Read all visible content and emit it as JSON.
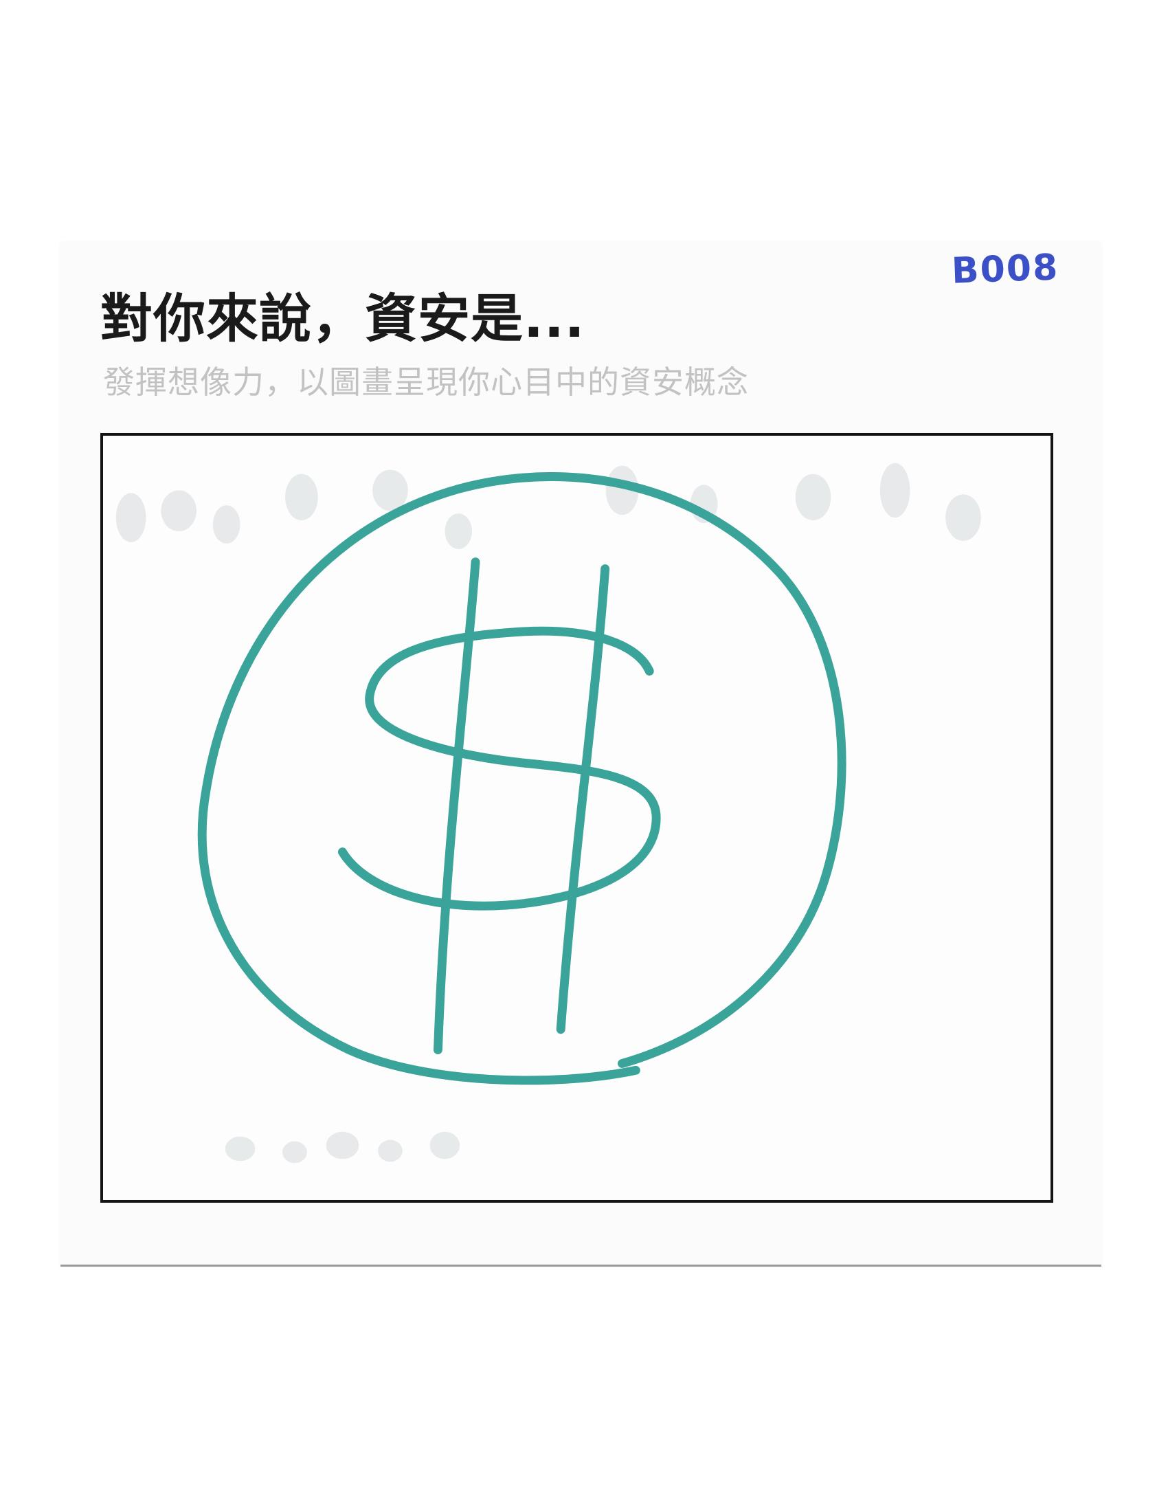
{
  "card": {
    "id": "B008",
    "title": "對你來說，資安是...",
    "subtitle": "發揮想像力，以圖畫呈現你心目中的資安概念"
  },
  "drawing": {
    "subject": "dollar-sign-in-circle",
    "ink_color": "#3aa39a"
  },
  "colors": {
    "title": "#1a1a1a",
    "subtitle": "#c2c2c2",
    "id_ink": "#3b4fc7",
    "frame": "#141414"
  }
}
